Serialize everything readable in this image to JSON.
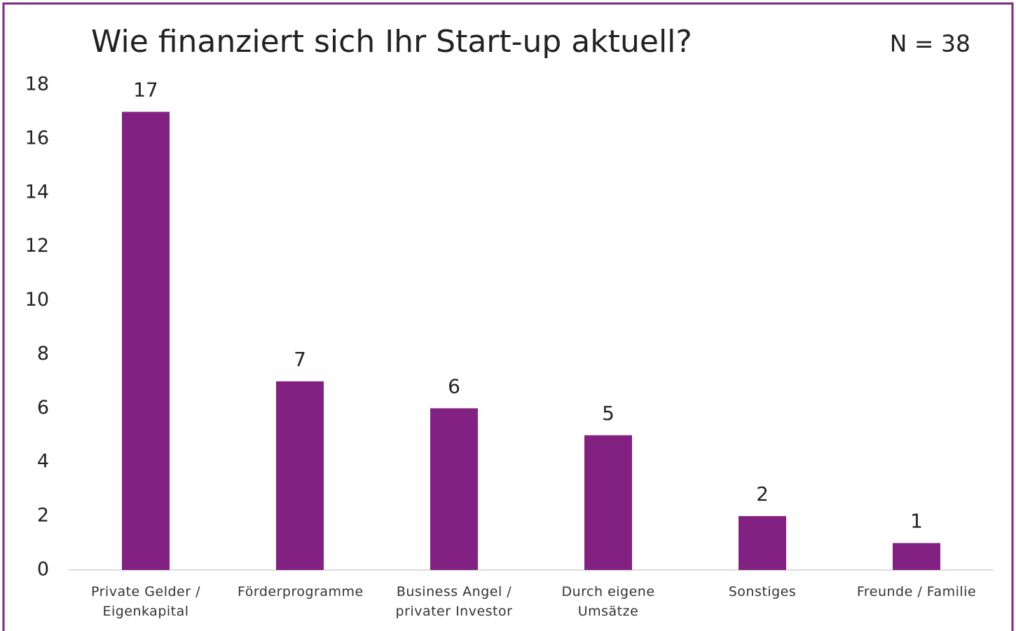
{
  "chart_data": {
    "type": "bar",
    "title": "Wie finanziert sich Ihr Start-up aktuell?",
    "annotation": "N = 38",
    "categories": [
      "Private Gelder / Eigenkapital",
      "Förderprogramme",
      "Business Angel / privater Investor",
      "Durch eigene Umsätze",
      "Sonstiges",
      "Freunde / Familie"
    ],
    "values": [
      17,
      7,
      6,
      5,
      2,
      1
    ],
    "color": "#822181",
    "ylim": [
      0,
      18
    ],
    "yticks": [
      0,
      2,
      4,
      6,
      8,
      10,
      12,
      14,
      16,
      18
    ],
    "grid": false
  }
}
